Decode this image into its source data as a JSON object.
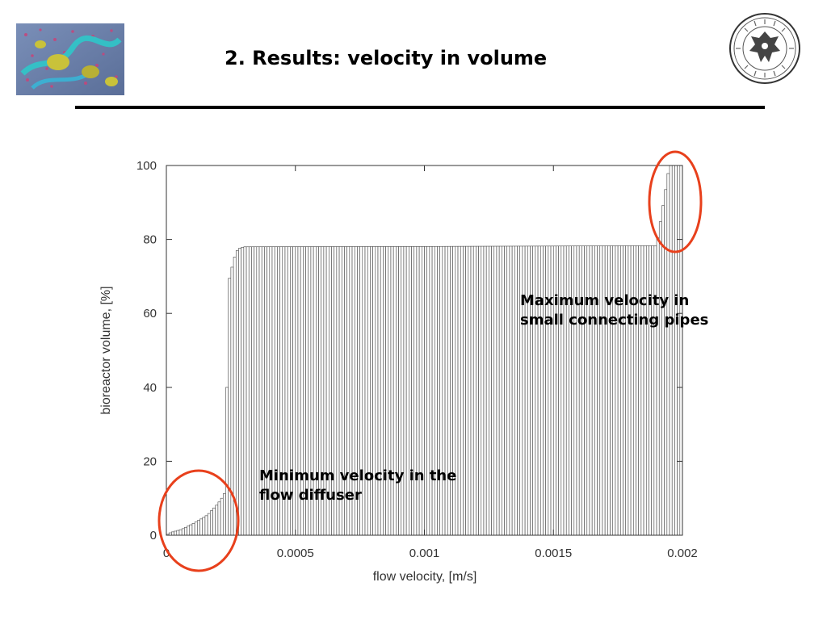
{
  "slide": {
    "title": "2. Results: velocity in volume",
    "logo_left_icon": "simulation-render-icon",
    "logo_right_icon": "university-seal-icon"
  },
  "annotations": {
    "max_label": "Maximum velocity in small connecting pipes",
    "min_label": "Minimum velocity in the flow diffuser",
    "highlight_color": "#e8401c"
  },
  "chart_data": {
    "type": "bar",
    "title": "",
    "xlabel": "flow velocity, [m/s]",
    "ylabel": "bioreactor volume, [%]",
    "xlim": [
      0,
      0.002
    ],
    "ylim": [
      0,
      100
    ],
    "xticks": [
      "0",
      "0.0005",
      "0.001",
      "0.0015",
      "0.002"
    ],
    "yticks": [
      "0",
      "20",
      "40",
      "60",
      "80",
      "100"
    ],
    "grid": false,
    "cumulative_profile": [
      [
        0.0,
        0.0
      ],
      [
        1e-05,
        0.5
      ],
      [
        2e-05,
        0.8
      ],
      [
        4e-05,
        1.2
      ],
      [
        6e-05,
        1.6
      ],
      [
        8e-05,
        2.3
      ],
      [
        0.0001,
        3.0
      ],
      [
        0.00012,
        3.8
      ],
      [
        0.00014,
        4.6
      ],
      [
        0.00016,
        5.5
      ],
      [
        0.00018,
        7.0
      ],
      [
        0.0002,
        8.5
      ],
      [
        0.00022,
        10.5
      ],
      [
        0.00023,
        12.0
      ],
      [
        0.00024,
        68.0
      ],
      [
        0.00025,
        71.0
      ],
      [
        0.00026,
        74.0
      ],
      [
        0.00027,
        76.5
      ],
      [
        0.00028,
        77.5
      ],
      [
        0.0003,
        78.0
      ],
      [
        0.001,
        78.1
      ],
      [
        0.0019,
        78.3
      ],
      [
        0.00195,
        100.0
      ],
      [
        0.002,
        100.0
      ]
    ],
    "bar_width": 1e-05,
    "bar_fill": "#ffffff",
    "bar_stroke": "#444444"
  }
}
